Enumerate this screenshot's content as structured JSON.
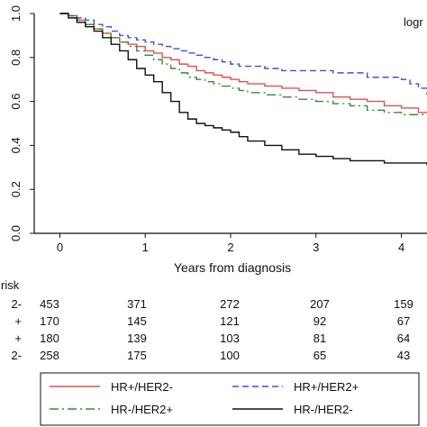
{
  "chart_data": {
    "type": "line",
    "title": "",
    "xlabel": "Years from diagnosis",
    "ylabel": "",
    "xlim": [
      -0.3,
      4.3
    ],
    "ylim": [
      0,
      1
    ],
    "xticks": [
      "0",
      "1",
      "2",
      "3",
      "4"
    ],
    "yticks": [
      "0.0",
      "0.2",
      "0.4",
      "0.6",
      "0.8",
      "1.0"
    ],
    "grid": false,
    "legend_position": "bottom",
    "annotation": "logr",
    "series": [
      {
        "name": "HR+/HER2-",
        "color": "#e05050",
        "dash": "solid",
        "x": [
          0,
          0.1,
          0.2,
          0.3,
          0.4,
          0.5,
          0.6,
          0.7,
          0.8,
          0.9,
          1.0,
          1.1,
          1.2,
          1.3,
          1.4,
          1.5,
          1.6,
          1.7,
          1.8,
          1.9,
          2.0,
          2.1,
          2.2,
          2.4,
          2.6,
          2.8,
          3.0,
          3.2,
          3.4,
          3.6,
          3.8,
          4.0,
          4.2,
          4.3
        ],
        "values": [
          1.0,
          0.99,
          0.97,
          0.95,
          0.93,
          0.91,
          0.89,
          0.87,
          0.86,
          0.85,
          0.83,
          0.82,
          0.8,
          0.79,
          0.77,
          0.76,
          0.74,
          0.73,
          0.72,
          0.71,
          0.7,
          0.69,
          0.68,
          0.67,
          0.66,
          0.65,
          0.64,
          0.62,
          0.61,
          0.6,
          0.58,
          0.57,
          0.55,
          0.55
        ]
      },
      {
        "name": "HR+/HER2+",
        "color": "#3a50d8",
        "dash": "dashed",
        "x": [
          0,
          0.1,
          0.2,
          0.3,
          0.4,
          0.5,
          0.6,
          0.7,
          0.8,
          0.9,
          1.0,
          1.1,
          1.2,
          1.3,
          1.4,
          1.5,
          1.6,
          1.7,
          1.8,
          1.9,
          2.0,
          2.1,
          2.2,
          2.4,
          2.6,
          2.8,
          3.0,
          3.2,
          3.4,
          3.6,
          3.8,
          4.0,
          4.1,
          4.2,
          4.3
        ],
        "values": [
          1.0,
          0.99,
          0.98,
          0.97,
          0.95,
          0.94,
          0.92,
          0.9,
          0.89,
          0.88,
          0.87,
          0.86,
          0.85,
          0.84,
          0.83,
          0.82,
          0.81,
          0.8,
          0.79,
          0.78,
          0.77,
          0.76,
          0.76,
          0.75,
          0.74,
          0.74,
          0.74,
          0.73,
          0.73,
          0.71,
          0.71,
          0.7,
          0.68,
          0.66,
          0.63
        ]
      },
      {
        "name": "HR-/HER2+",
        "color": "#3a8a3a",
        "dash": "dashdot",
        "x": [
          0,
          0.1,
          0.2,
          0.3,
          0.4,
          0.5,
          0.6,
          0.7,
          0.8,
          0.9,
          1.0,
          1.1,
          1.2,
          1.3,
          1.4,
          1.5,
          1.6,
          1.7,
          1.8,
          1.9,
          2.0,
          2.1,
          2.2,
          2.4,
          2.6,
          2.8,
          3.0,
          3.2,
          3.4,
          3.6,
          3.8,
          4.0,
          4.3
        ],
        "values": [
          1.0,
          0.99,
          0.97,
          0.95,
          0.93,
          0.91,
          0.89,
          0.87,
          0.85,
          0.83,
          0.81,
          0.79,
          0.77,
          0.75,
          0.73,
          0.71,
          0.7,
          0.69,
          0.68,
          0.67,
          0.66,
          0.65,
          0.64,
          0.63,
          0.62,
          0.61,
          0.6,
          0.59,
          0.58,
          0.56,
          0.55,
          0.54,
          0.54
        ]
      },
      {
        "name": "HR-/HER2-",
        "color": "#111111",
        "dash": "solid",
        "x": [
          0,
          0.1,
          0.2,
          0.3,
          0.4,
          0.5,
          0.6,
          0.7,
          0.8,
          0.9,
          1.0,
          1.1,
          1.2,
          1.3,
          1.4,
          1.5,
          1.6,
          1.7,
          1.8,
          1.9,
          2.0,
          2.1,
          2.2,
          2.4,
          2.6,
          2.8,
          3.0,
          3.2,
          3.4,
          3.6,
          3.8,
          4.0,
          4.3
        ],
        "values": [
          1.0,
          0.98,
          0.96,
          0.94,
          0.92,
          0.89,
          0.86,
          0.83,
          0.79,
          0.75,
          0.72,
          0.69,
          0.64,
          0.6,
          0.55,
          0.52,
          0.5,
          0.49,
          0.48,
          0.47,
          0.46,
          0.44,
          0.42,
          0.4,
          0.38,
          0.36,
          0.35,
          0.34,
          0.33,
          0.33,
          0.32,
          0.32,
          0.31
        ]
      }
    ],
    "risk_table": {
      "title": "risk",
      "rows": [
        {
          "label": "2-",
          "values": [
            "453",
            "371",
            "272",
            "207",
            "159"
          ]
        },
        {
          "label": "+",
          "values": [
            "170",
            "145",
            "121",
            "92",
            "67"
          ]
        },
        {
          "label": "+",
          "values": [
            "180",
            "139",
            "103",
            "81",
            "64"
          ]
        },
        {
          "label": "2-",
          "values": [
            "258",
            "175",
            "100",
            "65",
            "43"
          ]
        }
      ]
    }
  }
}
